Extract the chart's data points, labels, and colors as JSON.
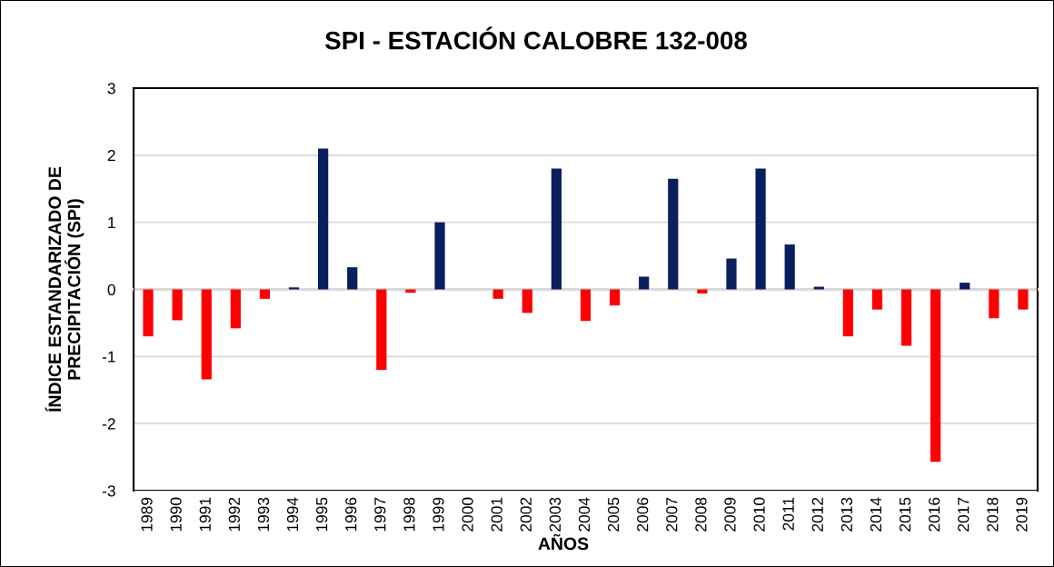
{
  "chart_data": {
    "type": "bar",
    "title": "SPI - ESTACIÓN CALOBRE 132-008",
    "xlabel": "AÑOS",
    "ylabel": "ÍNDICE ESTANDARIZADO DE\nPRECIPITACIÓN (SPI)",
    "categories": [
      "1989",
      "1990",
      "1991",
      "1992",
      "1993",
      "1994",
      "1995",
      "1996",
      "1997",
      "1998",
      "1999",
      "2000",
      "2001",
      "2002",
      "2003",
      "2004",
      "2005",
      "2006",
      "2007",
      "2008",
      "2009",
      "2010",
      "2011",
      "2012",
      "2013",
      "2014",
      "2015",
      "2016",
      "2017",
      "2018",
      "2019"
    ],
    "values": [
      -0.7,
      -0.46,
      -1.34,
      -0.58,
      -0.14,
      0.03,
      2.1,
      0.33,
      -1.2,
      -0.05,
      1.0,
      0,
      -0.14,
      -0.35,
      1.8,
      -0.47,
      -0.24,
      0.19,
      1.65,
      -0.06,
      0.46,
      1.8,
      0.67,
      0.04,
      -0.7,
      -0.3,
      -0.84,
      -2.57,
      0.1,
      -0.43,
      -0.3
    ],
    "colors": [
      "#ff0000",
      "#ff0000",
      "#ff0000",
      "#ff0000",
      "#ff0000",
      "#0a1f5e",
      "#0a1f5e",
      "#0a1f5e",
      "#ff0000",
      "#ff0000",
      "#0a1f5e",
      "#0a1f5e",
      "#ff0000",
      "#ff0000",
      "#0a1f5e",
      "#ff0000",
      "#ff0000",
      "#0a1f5e",
      "#0a1f5e",
      "#ff0000",
      "#0a1f5e",
      "#0a1f5e",
      "#0a1f5e",
      "#0a1f5e",
      "#ff0000",
      "#ff0000",
      "#ff0000",
      "#ff0000",
      "#0a1f5e",
      "#ff0000",
      "#ff0000"
    ],
    "ylim": [
      -3,
      3
    ],
    "yticks": [
      -3,
      -2,
      -1,
      0,
      1,
      2,
      3
    ],
    "grid": "y"
  }
}
